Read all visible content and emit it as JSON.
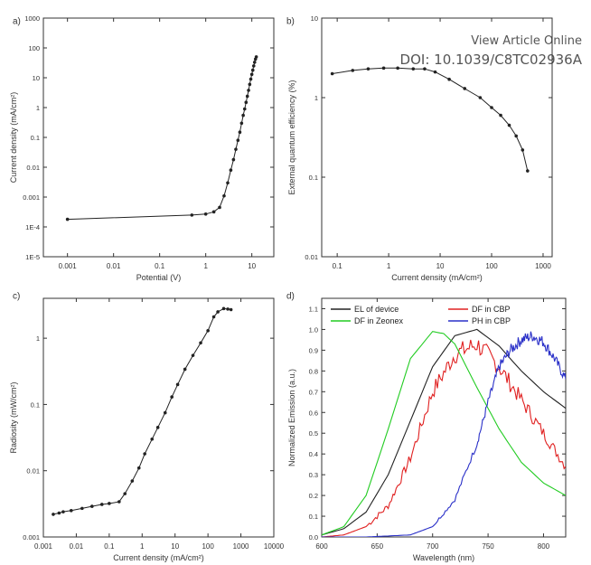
{
  "header": {
    "line1": "View Article Online",
    "line2": "DOI: 10.1039/C8TC02936A"
  },
  "chart_data": [
    {
      "panel": "a)",
      "type": "line",
      "xlabel": "Potential (V)",
      "ylabel": "Current density (mA/cm²)",
      "xscale": "log",
      "yscale": "log",
      "xlim": [
        0.0003,
        30
      ],
      "ylim": [
        1e-05,
        1000
      ],
      "xticks": [
        0.001,
        0.01,
        0.1,
        1,
        10
      ],
      "xticklabels": [
        "0.001",
        "0.01",
        "0.1",
        "1",
        "10"
      ],
      "yticks": [
        1e-05,
        0.0001,
        0.001,
        0.01,
        0.1,
        1,
        10,
        100,
        1000
      ],
      "yticklabels": [
        "1E-5",
        "1E-4",
        "0.001",
        "0.01",
        "0.1",
        "1",
        "10",
        "100",
        "1000"
      ],
      "color": "#222222",
      "x": [
        0.001,
        0.5,
        1,
        1.5,
        2,
        2.5,
        3,
        3.5,
        4,
        4.5,
        5,
        5.5,
        6,
        6.5,
        7,
        7.5,
        8,
        8.5,
        9,
        9.5,
        10,
        10.5,
        11,
        11.5,
        12,
        12.5
      ],
      "y": [
        0.00018,
        0.00025,
        0.00027,
        0.00032,
        0.00045,
        0.0011,
        0.003,
        0.008,
        0.018,
        0.04,
        0.08,
        0.15,
        0.3,
        0.55,
        0.9,
        1.5,
        2.4,
        3.8,
        6,
        9,
        13,
        18,
        25,
        33,
        42,
        50
      ]
    },
    {
      "panel": "b)",
      "type": "line",
      "xlabel": "Current density (mA/cm²)",
      "ylabel": "External quantum efficiency (%)",
      "xscale": "log",
      "yscale": "log",
      "xlim": [
        0.05,
        1500
      ],
      "ylim": [
        0.01,
        10
      ],
      "xticks": [
        0.1,
        1,
        10,
        100,
        1000
      ],
      "xticklabels": [
        "0.1",
        "1",
        "10",
        "100",
        "1000"
      ],
      "yticks": [
        0.01,
        0.1,
        1,
        10
      ],
      "yticklabels": [
        "0.01",
        "0.1",
        "1",
        "10"
      ],
      "color": "#222222",
      "x": [
        0.08,
        0.2,
        0.4,
        0.8,
        1.5,
        3,
        5,
        8,
        15,
        30,
        60,
        100,
        150,
        220,
        300,
        400,
        500
      ],
      "y": [
        2.0,
        2.2,
        2.3,
        2.35,
        2.35,
        2.3,
        2.3,
        2.1,
        1.7,
        1.3,
        1.0,
        0.75,
        0.6,
        0.45,
        0.33,
        0.22,
        0.12
      ]
    },
    {
      "panel": "c)",
      "type": "line",
      "xlabel": "Current density (mA/cm²)",
      "ylabel": "Radiosity (mW/cm²)",
      "xscale": "log",
      "yscale": "log",
      "xlim": [
        0.001,
        10000
      ],
      "ylim": [
        0.001,
        4
      ],
      "xticks": [
        0.001,
        0.01,
        0.1,
        1,
        10,
        100,
        1000,
        10000
      ],
      "xticklabels": [
        "0.001",
        "0.01",
        "0.1",
        "1",
        "10",
        "100",
        "1000",
        "10000"
      ],
      "yticks": [
        0.001,
        0.01,
        0.1,
        1
      ],
      "yticklabels": [
        "0.001",
        "0.01",
        "0.1",
        "1"
      ],
      "color": "#222222",
      "x": [
        0.002,
        0.003,
        0.004,
        0.007,
        0.015,
        0.03,
        0.06,
        0.1,
        0.2,
        0.3,
        0.5,
        0.8,
        1.2,
        2,
        3,
        5,
        8,
        12,
        20,
        35,
        60,
        100,
        150,
        200,
        300,
        400,
        500
      ],
      "y": [
        0.0022,
        0.0023,
        0.0024,
        0.0025,
        0.0027,
        0.0029,
        0.0031,
        0.0032,
        0.0034,
        0.0045,
        0.007,
        0.011,
        0.018,
        0.03,
        0.045,
        0.075,
        0.13,
        0.2,
        0.34,
        0.55,
        0.85,
        1.3,
        2.1,
        2.5,
        2.8,
        2.75,
        2.7
      ]
    },
    {
      "panel": "d)",
      "type": "line",
      "xlabel": "Wavelength (nm)",
      "ylabel": "Normalized Emission (a.u.)",
      "xscale": "linear",
      "yscale": "linear",
      "xlim": [
        600,
        820
      ],
      "ylim": [
        0,
        1.15
      ],
      "xticks": [
        600,
        650,
        700,
        750,
        800
      ],
      "xticklabels": [
        "600",
        "650",
        "700",
        "750",
        "800"
      ],
      "yticks": [
        0.0,
        0.1,
        0.2,
        0.3,
        0.4,
        0.5,
        0.6,
        0.7,
        0.8,
        0.9,
        1.0,
        1.1
      ],
      "yticklabels": [
        "0.0",
        "0.1",
        "0.2",
        "0.3",
        "0.4",
        "0.5",
        "0.6",
        "0.7",
        "0.8",
        "0.9",
        "1.0",
        "1.1"
      ],
      "legend_location": "top",
      "series": [
        {
          "name": "EL of device",
          "color": "#222222",
          "noise": 0,
          "x": [
            600,
            620,
            640,
            660,
            680,
            700,
            720,
            740,
            760,
            780,
            800,
            820
          ],
          "y": [
            0.01,
            0.04,
            0.12,
            0.3,
            0.56,
            0.82,
            0.97,
            1.0,
            0.92,
            0.8,
            0.7,
            0.62
          ]
        },
        {
          "name": "DF in CBP",
          "color": "#e02020",
          "noise": 0.045,
          "x": [
            600,
            620,
            640,
            660,
            680,
            700,
            720,
            740,
            760,
            780,
            800,
            820
          ],
          "y": [
            0.0,
            0.01,
            0.05,
            0.15,
            0.38,
            0.7,
            0.88,
            0.93,
            0.82,
            0.66,
            0.5,
            0.34
          ]
        },
        {
          "name": "DF in Zeonex",
          "color": "#22cc22",
          "noise": 0,
          "x": [
            600,
            620,
            640,
            660,
            680,
            700,
            710,
            720,
            740,
            760,
            780,
            800,
            820
          ],
          "y": [
            0.01,
            0.05,
            0.2,
            0.52,
            0.86,
            0.99,
            0.98,
            0.93,
            0.72,
            0.52,
            0.36,
            0.26,
            0.2
          ]
        },
        {
          "name": "PH in CBP",
          "color": "#2a30c8",
          "noise": 0.025,
          "x": [
            600,
            640,
            680,
            700,
            720,
            740,
            750,
            760,
            770,
            780,
            790,
            800,
            810,
            820
          ],
          "y": [
            0.0,
            0.0,
            0.01,
            0.05,
            0.18,
            0.45,
            0.65,
            0.82,
            0.9,
            0.95,
            0.97,
            0.94,
            0.86,
            0.76
          ]
        }
      ]
    }
  ]
}
